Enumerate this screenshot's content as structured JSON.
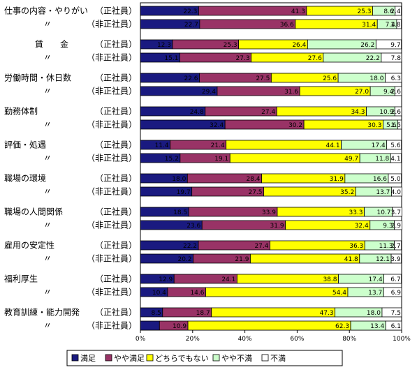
{
  "chart_data": {
    "type": "bar",
    "orientation": "horizontal",
    "stacked": true,
    "percent": true,
    "categories": [
      {
        "group": "仕事の内容・やりがい",
        "type": "（正社員）"
      },
      {
        "group": "〃",
        "type": "（非正社員）"
      },
      {
        "group": "賃　　金",
        "type": "（正社員）"
      },
      {
        "group": "〃",
        "type": "（非正社員）"
      },
      {
        "group": "労働時間・休日数",
        "type": "（正社員）"
      },
      {
        "group": "〃",
        "type": "（非正社員）"
      },
      {
        "group": "勤務体制",
        "type": "（正社員）"
      },
      {
        "group": "〃",
        "type": "（非正社員）"
      },
      {
        "group": "評価・処遇",
        "type": "（正社員）"
      },
      {
        "group": "〃",
        "type": "（非正社員）"
      },
      {
        "group": "職場の環境",
        "type": "（正社員）"
      },
      {
        "group": "〃",
        "type": "（非正社員）"
      },
      {
        "group": "職場の人間関係",
        "type": "（正社員）"
      },
      {
        "group": "〃",
        "type": "（非正社員）"
      },
      {
        "group": "雇用の安定性",
        "type": "（正社員）"
      },
      {
        "group": "〃",
        "type": "（非正社員）"
      },
      {
        "group": "福利厚生",
        "type": "（正社員）"
      },
      {
        "group": "〃",
        "type": "（非正社員）"
      },
      {
        "group": "教育訓練・能力開発",
        "type": "（正社員）"
      },
      {
        "group": "〃",
        "type": "（非正社員）"
      }
    ],
    "series": [
      {
        "name": "満足",
        "color": "#1a1a80",
        "values": [
          22.3,
          22.7,
          12.3,
          15.1,
          22.6,
          29.4,
          24.8,
          32.4,
          11.4,
          15.2,
          18.0,
          19.7,
          18.5,
          23.6,
          22.2,
          20.2,
          12.9,
          10.4,
          8.5,
          7.3
        ]
      },
      {
        "name": "やや満足",
        "color": "#993366",
        "values": [
          41.3,
          36.6,
          25.3,
          27.3,
          27.5,
          31.6,
          27.4,
          30.2,
          21.4,
          19.1,
          28.4,
          27.5,
          33.9,
          31.9,
          27.4,
          21.9,
          24.1,
          14.6,
          18.7,
          10.9
        ]
      },
      {
        "name": "どちらでもない",
        "color": "#ffff00",
        "values": [
          25.3,
          31.4,
          26.4,
          27.6,
          25.6,
          27.0,
          34.3,
          30.3,
          44.1,
          49.7,
          31.9,
          35.2,
          33.3,
          32.4,
          36.3,
          41.8,
          38.8,
          54.4,
          47.3,
          62.3
        ]
      },
      {
        "name": "やや不満",
        "color": "#ccffcc",
        "values": [
          8.6,
          7.4,
          26.2,
          22.2,
          18.0,
          9.4,
          10.9,
          5.6,
          17.4,
          11.8,
          16.6,
          13.7,
          10.7,
          9.3,
          11.3,
          12.1,
          17.4,
          13.7,
          18.0,
          13.4
        ]
      },
      {
        "name": "不満",
        "color": "#ffffff",
        "values": [
          2.4,
          1.8,
          9.7,
          7.8,
          6.3,
          2.6,
          2.6,
          1.5,
          5.6,
          4.1,
          5.0,
          4.0,
          3.7,
          2.9,
          2.7,
          3.9,
          6.7,
          6.9,
          7.5,
          6.1
        ]
      }
    ],
    "xlim": [
      0,
      100
    ],
    "xticks": [
      "0%",
      "20%",
      "40%",
      "60%",
      "80%",
      "100%"
    ],
    "legend_position": "bottom",
    "grid": false,
    "title": "",
    "xlabel": "",
    "ylabel": ""
  }
}
